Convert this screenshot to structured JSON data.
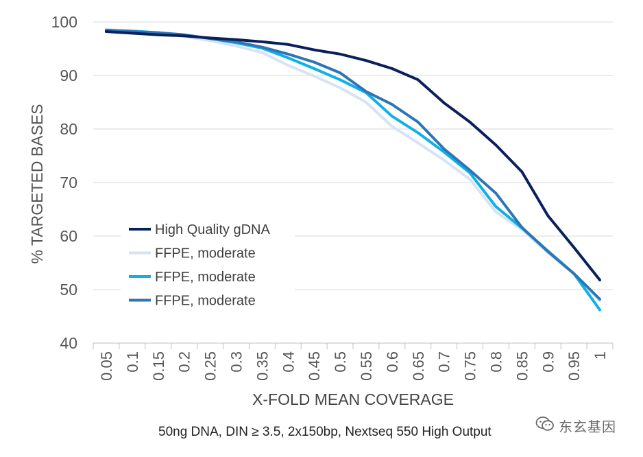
{
  "chart_data": {
    "type": "line",
    "title": "",
    "xlabel": "X-FOLD MEAN COVERAGE",
    "ylabel": "% TARGETED BASES",
    "subtitle": "50ng DNA, DIN ≥ 3.5, 2x150bp, Nextseq 550 High Output",
    "ylim": [
      40,
      100
    ],
    "yticks": [
      "40",
      "50",
      "60",
      "70",
      "80",
      "90",
      "100"
    ],
    "categories": [
      "0.05",
      "0.1",
      "0.15",
      "0.2",
      "0.25",
      "0.3",
      "0.35",
      "0.4",
      "0.45",
      "0.5",
      "0.55",
      "0.6",
      "0.65",
      "0.7",
      "0.75",
      "0.8",
      "0.85",
      "0.9",
      "0.95",
      "1"
    ],
    "grid": true,
    "legend_position": "left",
    "series": [
      {
        "name": "High Quality gDNA",
        "color": "#0b1f5c",
        "values": [
          98.2,
          97.9,
          97.6,
          97.4,
          97.0,
          96.7,
          96.3,
          95.8,
          94.8,
          94.0,
          92.8,
          91.3,
          89.2,
          84.9,
          81.3,
          77.0,
          72.0,
          63.8,
          57.9,
          51.8
        ]
      },
      {
        "name": "FFPE, moderate",
        "color": "#d7e3f3",
        "values": [
          98.6,
          98.3,
          97.9,
          97.3,
          96.5,
          95.5,
          94.3,
          91.9,
          89.9,
          87.7,
          85.0,
          80.5,
          77.4,
          74.2,
          70.6,
          64.5,
          61.2,
          56.9,
          52.9,
          47.9
        ]
      },
      {
        "name": "FFPE, moderate",
        "color": "#0fb0e6",
        "values": [
          98.5,
          98.3,
          98.0,
          97.6,
          96.9,
          96.1,
          95.1,
          93.3,
          91.3,
          89.2,
          86.8,
          82.4,
          79.3,
          75.7,
          71.8,
          65.5,
          61.5,
          57.2,
          53.0,
          46.2
        ]
      },
      {
        "name": "FFPE, moderate",
        "color": "#2e75b6",
        "values": [
          98.4,
          98.2,
          98.0,
          97.6,
          96.9,
          96.3,
          95.3,
          94.0,
          92.5,
          90.5,
          87.0,
          84.6,
          81.3,
          76.3,
          72.3,
          68.0,
          61.6,
          57.1,
          53.0,
          48.2
        ]
      }
    ]
  },
  "watermark": {
    "text": "东玄基因",
    "icon": "wechat-icon"
  }
}
